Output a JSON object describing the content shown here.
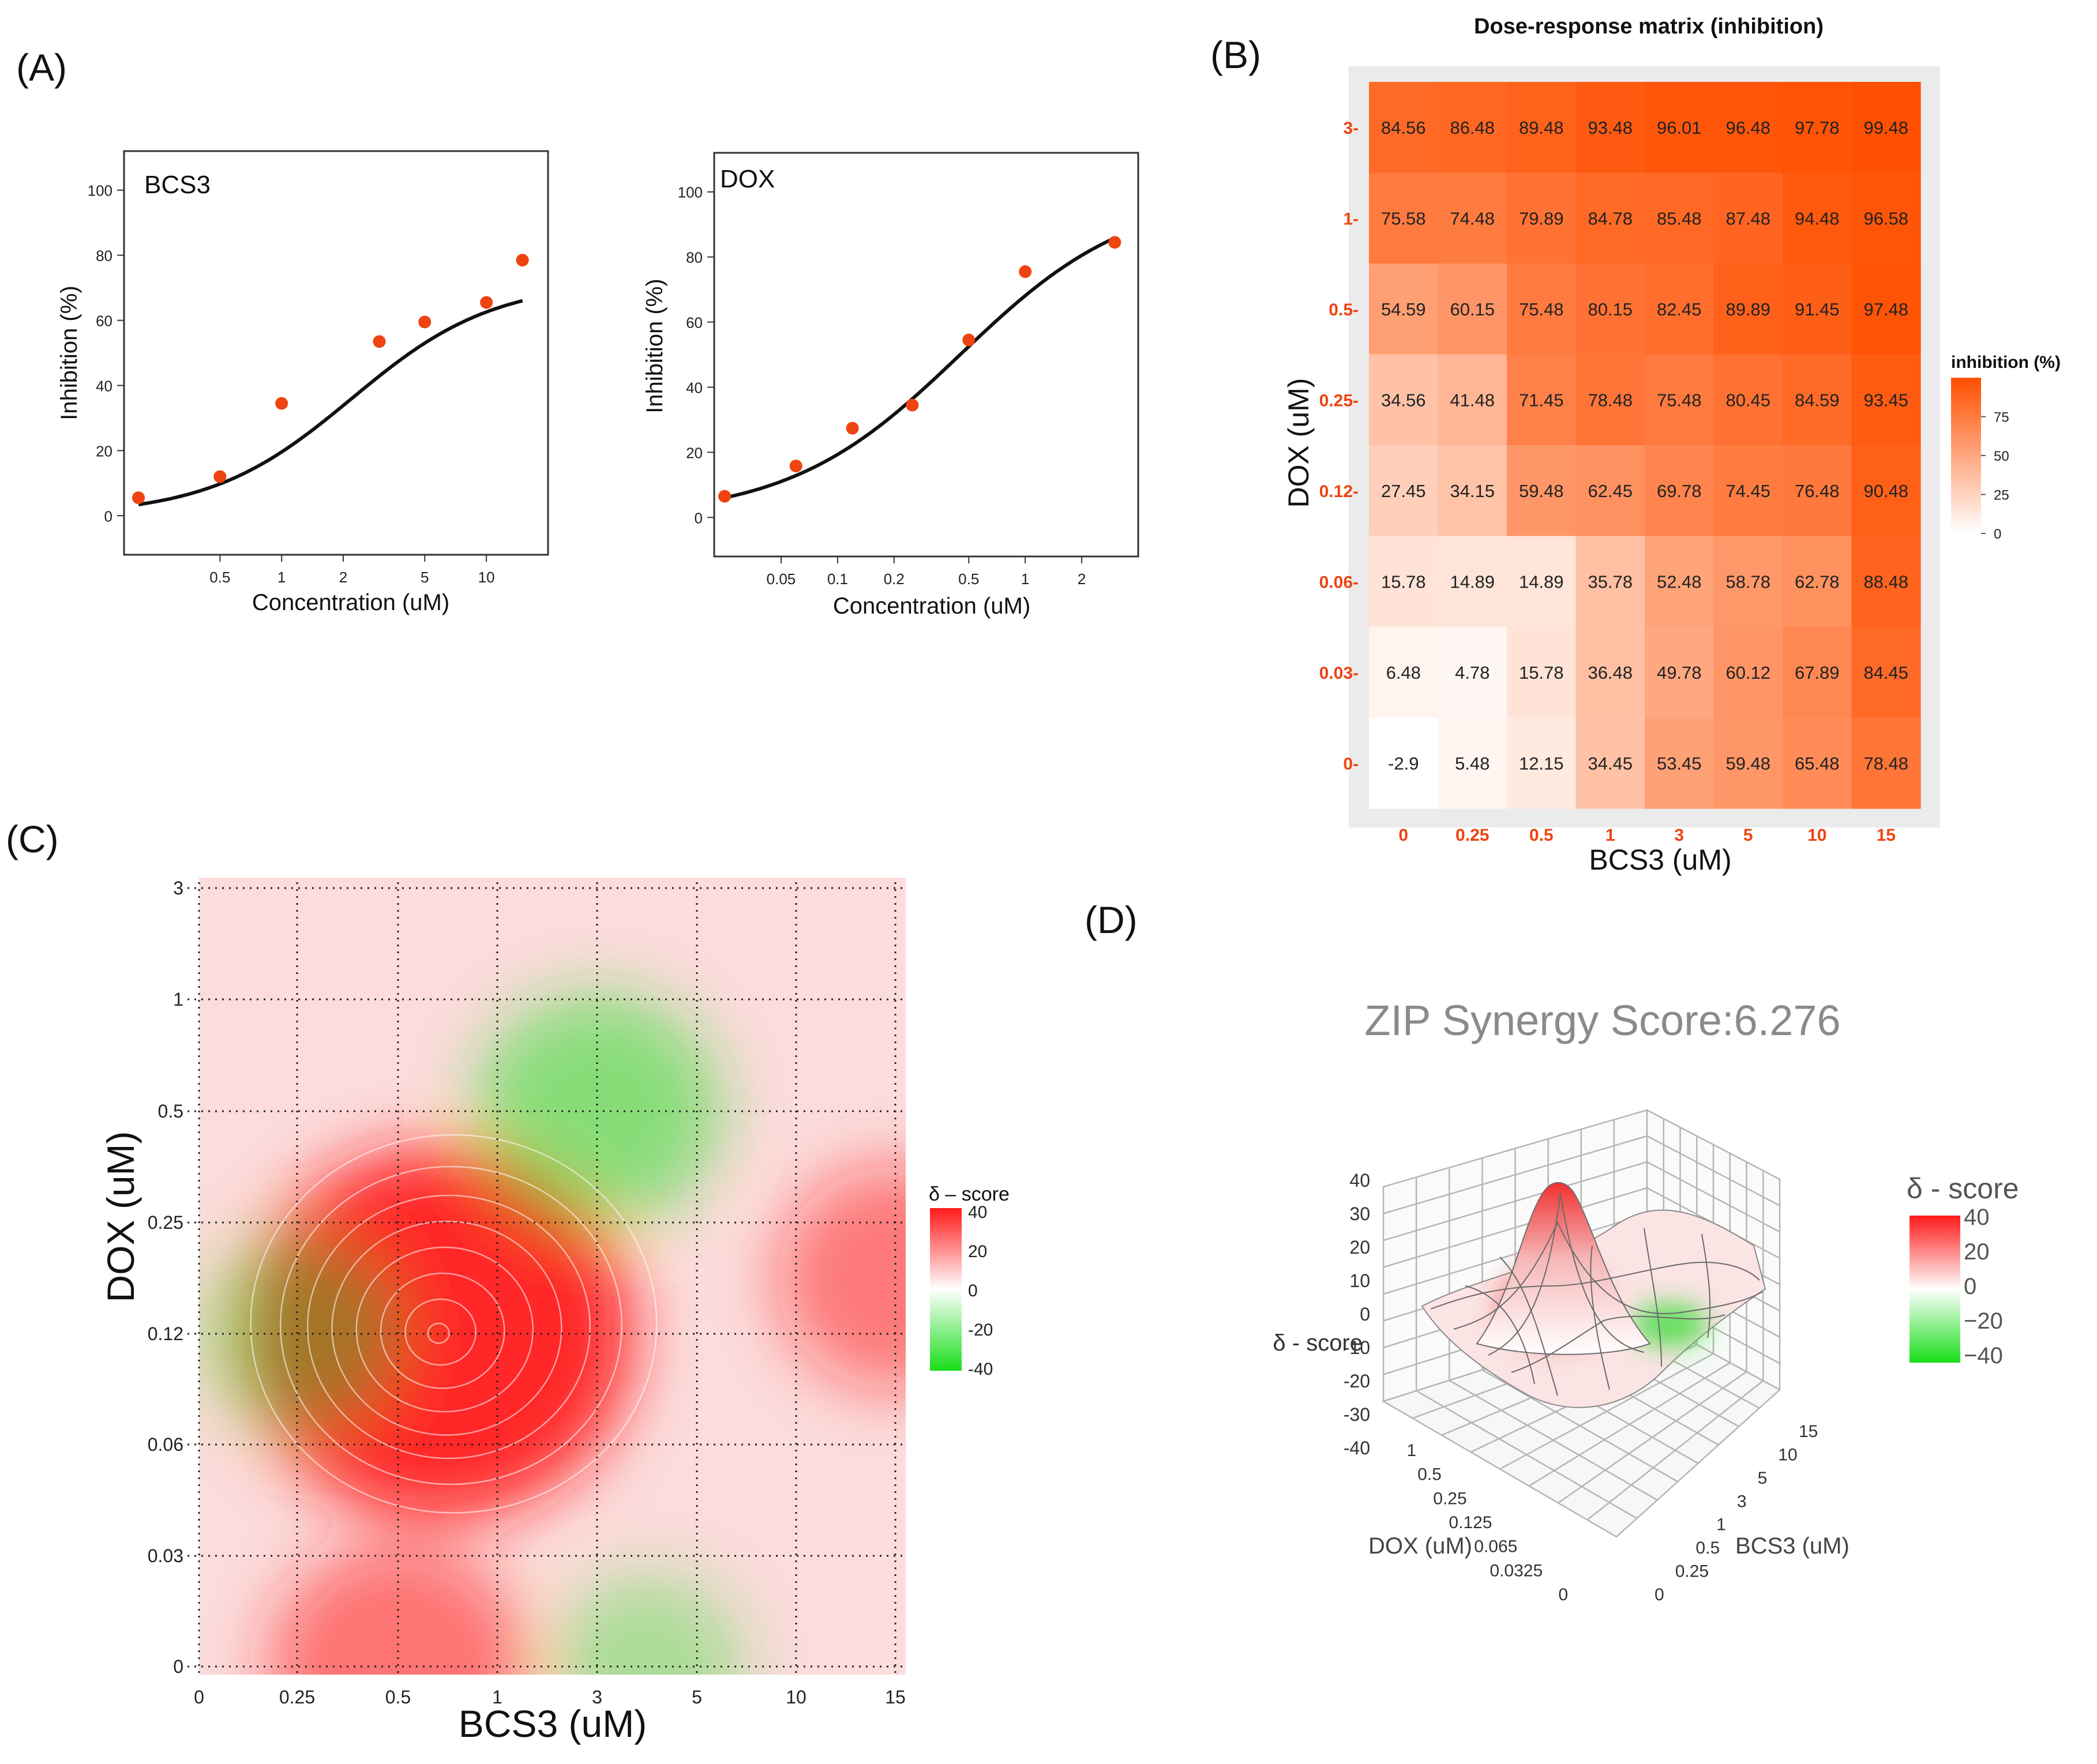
{
  "panel_labels": [
    "(A)",
    "(B)",
    "(C)",
    "(D)"
  ],
  "colors": {
    "marker": "#ee4411",
    "curve": "#111111",
    "heat_high": "#ff4f00",
    "heat_low": "#ffffff",
    "syn_pos": "#ff1a1a",
    "syn_neg": "#22dd22",
    "grid_dotted": "#222222",
    "tick_orange": "#ee4411",
    "gray_title": "#8a8a8a"
  },
  "chart_data": [
    {
      "id": "A1",
      "type": "scatter",
      "title": "BCS3",
      "xlabel": "Concentration (uM)",
      "ylabel": "Inhibition (%)",
      "xscale": "log",
      "xlim": [
        0.17,
        20
      ],
      "ylim": [
        -12,
        112
      ],
      "x_ticks": [
        0.5,
        1,
        2,
        5,
        10
      ],
      "x_tick_labels": [
        "0.5",
        "1",
        "2",
        "5",
        "10"
      ],
      "y_ticks": [
        0,
        20,
        40,
        60,
        80,
        100
      ],
      "y_tick_labels": [
        "0",
        "20",
        "40",
        "60",
        "80",
        "100"
      ],
      "points": {
        "x": [
          0.2,
          0.5,
          1,
          3,
          5,
          10,
          15
        ],
        "y": [
          5.5,
          12,
          34.5,
          53.5,
          59.5,
          65.5,
          78.5
        ]
      },
      "fit": {
        "model": "4PL",
        "bottom": 0,
        "top": 72,
        "ec50": 2.2,
        "hill": 1.25
      }
    },
    {
      "id": "A2",
      "type": "scatter",
      "title": "DOX",
      "xlabel": "Concentration (uM)",
      "ylabel": "Inhibition (%)",
      "xscale": "log",
      "xlim": [
        0.022,
        4
      ],
      "ylim": [
        -12,
        112
      ],
      "x_ticks": [
        0.05,
        0.1,
        0.2,
        0.5,
        1,
        2
      ],
      "x_tick_labels": [
        "0.05",
        "0.1",
        "0.2",
        "0.5",
        "1",
        "2"
      ],
      "y_ticks": [
        0,
        20,
        40,
        60,
        80,
        100
      ],
      "y_tick_labels": [
        "0",
        "20",
        "40",
        "60",
        "80",
        "100"
      ],
      "points": {
        "x": [
          0.025,
          0.06,
          0.12,
          0.25,
          0.5,
          1,
          3
        ],
        "y": [
          6.5,
          15.8,
          27.4,
          34.5,
          54.5,
          75.5,
          84.5
        ]
      },
      "fit": {
        "model": "4PL",
        "bottom": 0,
        "top": 100,
        "ec50": 0.45,
        "hill": 0.95
      }
    },
    {
      "id": "B",
      "type": "heatmap",
      "title": "Dose-response matrix (inhibition)",
      "xlabel": "BCS3 (uM)",
      "ylabel": "DOX (uM)",
      "x_categories": [
        "0",
        "0.25",
        "0.5",
        "1",
        "3",
        "5",
        "10",
        "15"
      ],
      "y_categories": [
        "3",
        "1",
        "0.5",
        "0.25",
        "0.12",
        "0.06",
        "0.03",
        "0"
      ],
      "values": [
        [
          "84.56",
          "86.48",
          "89.48",
          "93.48",
          "96.01",
          "96.48",
          "97.78",
          "99.48"
        ],
        [
          "75.58",
          "74.48",
          "79.89",
          "84.78",
          "85.48",
          "87.48",
          "94.48",
          "96.58"
        ],
        [
          "54.59",
          "60.15",
          "75.48",
          "80.15",
          "82.45",
          "89.89",
          "91.45",
          "97.48"
        ],
        [
          "34.56",
          "41.48",
          "71.45",
          "78.48",
          "75.48",
          "80.45",
          "84.59",
          "93.45"
        ],
        [
          "27.45",
          "34.15",
          "59.48",
          "62.45",
          "69.78",
          "74.45",
          "76.48",
          "90.48"
        ],
        [
          "15.78",
          "14.89",
          "14.89",
          "35.78",
          "52.48",
          "58.78",
          "62.78",
          "88.48"
        ],
        [
          "6.48",
          "4.78",
          "15.78",
          "36.48",
          "49.78",
          "60.12",
          "67.89",
          "84.45"
        ],
        [
          "-2.9",
          "5.48",
          "12.15",
          "34.45",
          "53.45",
          "59.48",
          "65.48",
          "78.48"
        ]
      ],
      "legend": {
        "title": "inhibition (%)",
        "ticks": [
          "75",
          "50",
          "25",
          "0"
        ],
        "range": [
          0,
          100
        ]
      }
    },
    {
      "id": "C",
      "type": "heatmap",
      "subtype": "contour",
      "xlabel": "BCS3 (uM)",
      "ylabel": "DOX (uM)",
      "x_tick_labels": [
        "0",
        "0.25",
        "0.5",
        "1",
        "3",
        "5",
        "10",
        "15"
      ],
      "y_tick_labels": [
        "3",
        "1",
        "0.5",
        "0.25",
        "0.12",
        "0.06",
        "0.03",
        "0"
      ],
      "hotspots": [
        {
          "bcs3_index": 2.4,
          "dox_index": 4.0,
          "delta": 38
        },
        {
          "bcs3_index": 4.0,
          "dox_index": 2.0,
          "delta": -12
        },
        {
          "bcs3_index": 1.0,
          "dox_index": 4.0,
          "delta": -4
        },
        {
          "bcs3_index": 4.5,
          "dox_index": 7.0,
          "delta": -2
        },
        {
          "bcs3_index": 2.0,
          "dox_index": 7.0,
          "delta": 14
        },
        {
          "bcs3_index": 7.0,
          "dox_index": 3.5,
          "delta": 10
        }
      ],
      "base_delta": 7,
      "legend": {
        "title": "δ – score",
        "ticks": [
          "40",
          "20",
          "0",
          "-20",
          "-40"
        ],
        "range": [
          -40,
          40
        ]
      }
    },
    {
      "id": "D",
      "type": "area",
      "subtype": "3d-surface",
      "title": "ZIP Synergy Score:6.276",
      "zlabel": "δ - score",
      "xlabel": "BCS3 (uM)",
      "ylabel": "DOX (uM)",
      "x_tick_labels": [
        "0",
        "0.25",
        "0.5",
        "1",
        "3",
        "5",
        "10",
        "15"
      ],
      "y_tick_labels": [
        "0",
        "0.0325",
        "0.065",
        "0.125",
        "0.25",
        "0.5",
        "1"
      ],
      "z_tick_labels": [
        "40",
        "30",
        "20",
        "10",
        "0",
        "-10",
        "-20",
        "-30",
        "-40"
      ],
      "legend": {
        "title": "δ - score",
        "ticks": [
          "40",
          "20",
          "0",
          "−20",
          "−40"
        ],
        "range": [
          -40,
          40
        ]
      }
    }
  ]
}
